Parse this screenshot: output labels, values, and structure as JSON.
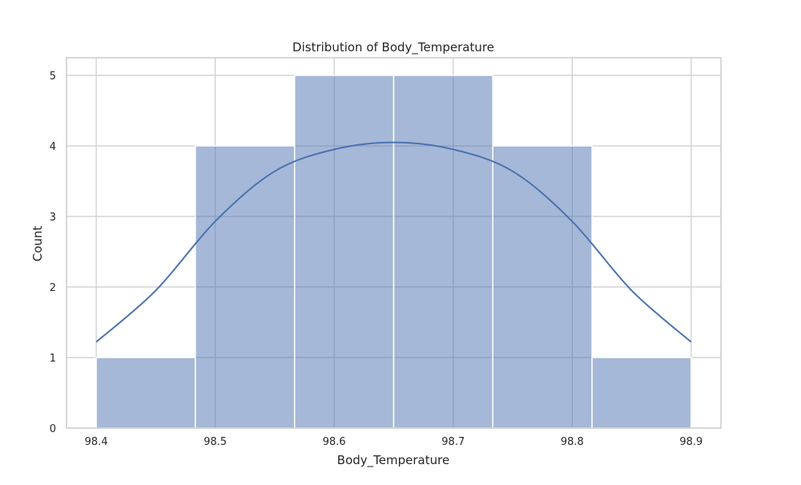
{
  "chart_data": {
    "type": "bar",
    "title": "Distribution of Body_Temperature",
    "xlabel": "Body_Temperature",
    "ylabel": "Count",
    "bins": [
      {
        "start": 98.4,
        "end": 98.4833,
        "count": 1
      },
      {
        "start": 98.4833,
        "end": 98.5667,
        "count": 4
      },
      {
        "start": 98.5667,
        "end": 98.65,
        "count": 5
      },
      {
        "start": 98.65,
        "end": 98.7333,
        "count": 5
      },
      {
        "start": 98.7333,
        "end": 98.8167,
        "count": 4
      },
      {
        "start": 98.8167,
        "end": 98.9,
        "count": 1
      }
    ],
    "kde": {
      "x": [
        98.4,
        98.45,
        98.5,
        98.55,
        98.6,
        98.65,
        98.7,
        98.75,
        98.8,
        98.85,
        98.9
      ],
      "y": [
        1.22,
        1.95,
        2.93,
        3.64,
        3.95,
        4.05,
        3.95,
        3.64,
        2.93,
        1.95,
        1.22
      ]
    },
    "x_ticks": [
      "98.4",
      "98.5",
      "98.6",
      "98.7",
      "98.8",
      "98.9"
    ],
    "y_ticks": [
      "0",
      "1",
      "2",
      "3",
      "4",
      "5"
    ],
    "xlim": [
      98.375,
      98.925
    ],
    "ylim": [
      0,
      5.25
    ],
    "grid": true,
    "colors": {
      "bar_fill": "#4c72b0",
      "bar_edge": "#ffffff",
      "kde_line": "#4c72b0",
      "grid": "#cccccc",
      "frame": "#cccccc"
    }
  }
}
